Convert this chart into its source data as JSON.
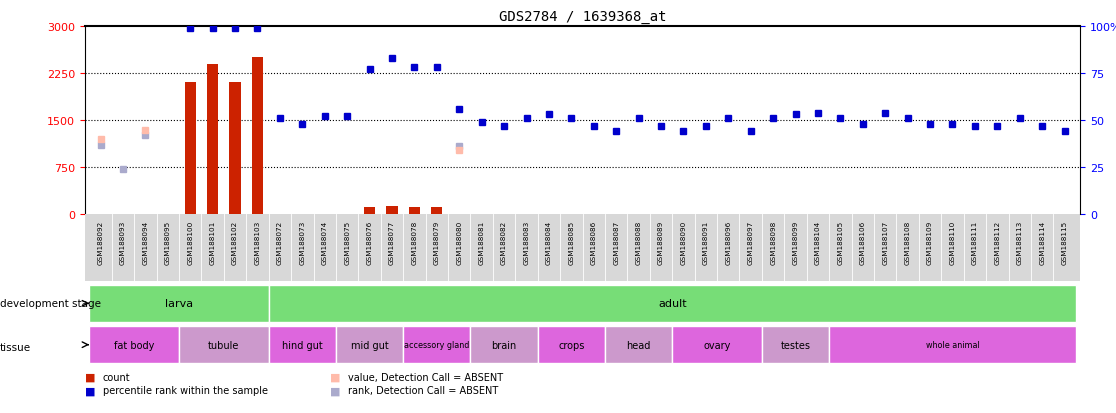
{
  "title": "GDS2784 / 1639368_at",
  "samples": [
    "GSM188092",
    "GSM188093",
    "GSM188094",
    "GSM188095",
    "GSM188100",
    "GSM188101",
    "GSM188102",
    "GSM188103",
    "GSM188072",
    "GSM188073",
    "GSM188074",
    "GSM188075",
    "GSM188076",
    "GSM188077",
    "GSM188078",
    "GSM188079",
    "GSM188080",
    "GSM188081",
    "GSM188082",
    "GSM188083",
    "GSM188084",
    "GSM188085",
    "GSM188086",
    "GSM188087",
    "GSM188088",
    "GSM188089",
    "GSM188090",
    "GSM188091",
    "GSM188096",
    "GSM188097",
    "GSM188098",
    "GSM188099",
    "GSM188104",
    "GSM188105",
    "GSM188106",
    "GSM188107",
    "GSM188108",
    "GSM188109",
    "GSM188110",
    "GSM188111",
    "GSM188112",
    "GSM188113",
    "GSM188114",
    "GSM188115"
  ],
  "count_values": [
    5,
    5,
    5,
    5,
    2100,
    2400,
    2100,
    2500,
    5,
    5,
    5,
    5,
    110,
    130,
    110,
    110,
    5,
    5,
    5,
    5,
    5,
    5,
    5,
    5,
    5,
    5,
    5,
    5,
    5,
    5,
    5,
    5,
    5,
    5,
    5,
    5,
    5,
    5,
    5,
    5,
    5,
    5,
    5,
    5
  ],
  "rank_values": [
    null,
    null,
    null,
    null,
    99,
    99,
    99,
    99,
    51,
    48,
    52,
    52,
    77,
    83,
    78,
    78,
    56,
    49,
    47,
    51,
    53,
    51,
    47,
    44,
    51,
    47,
    44,
    47,
    51,
    44,
    51,
    53,
    54,
    51,
    48,
    54,
    51,
    48,
    48,
    47,
    47,
    51,
    47,
    44
  ],
  "rank_absent": [
    true,
    true,
    true,
    true,
    false,
    false,
    false,
    false,
    false,
    false,
    false,
    false,
    false,
    false,
    false,
    false,
    false,
    false,
    false,
    false,
    false,
    false,
    false,
    false,
    false,
    false,
    false,
    false,
    false,
    false,
    false,
    false,
    false,
    false,
    false,
    false,
    false,
    false,
    false,
    false,
    false,
    false,
    false,
    false
  ],
  "value_absent_vals": [
    1200,
    null,
    1350,
    null,
    null,
    null,
    null,
    null,
    null,
    null,
    null,
    null,
    null,
    null,
    null,
    null,
    1020,
    null,
    null,
    null,
    null,
    null,
    null,
    null,
    null,
    null,
    null,
    null,
    null,
    null,
    null,
    null,
    null,
    null,
    null,
    null,
    null,
    null,
    null,
    null,
    null,
    null,
    null,
    null
  ],
  "rank_absent_vals": [
    37,
    24,
    42,
    null,
    null,
    null,
    null,
    null,
    null,
    null,
    null,
    null,
    null,
    null,
    null,
    null,
    36,
    null,
    null,
    null,
    null,
    null,
    null,
    null,
    null,
    null,
    null,
    null,
    null,
    null,
    null,
    null,
    null,
    null,
    null,
    null,
    null,
    null,
    null,
    null,
    null,
    null,
    null,
    null
  ],
  "dev_stage_groups": [
    {
      "label": "larva",
      "start": 0,
      "end": 7
    },
    {
      "label": "adult",
      "start": 8,
      "end": 43
    }
  ],
  "tissue_groups": [
    {
      "label": "fat body",
      "start": 0,
      "end": 3
    },
    {
      "label": "tubule",
      "start": 4,
      "end": 7
    },
    {
      "label": "hind gut",
      "start": 8,
      "end": 10
    },
    {
      "label": "mid gut",
      "start": 11,
      "end": 13
    },
    {
      "label": "accessory gland",
      "start": 14,
      "end": 16
    },
    {
      "label": "brain",
      "start": 17,
      "end": 19
    },
    {
      "label": "crops",
      "start": 20,
      "end": 22
    },
    {
      "label": "head",
      "start": 23,
      "end": 25
    },
    {
      "label": "ovary",
      "start": 26,
      "end": 29
    },
    {
      "label": "testes",
      "start": 30,
      "end": 32
    },
    {
      "label": "whole animal",
      "start": 33,
      "end": 43
    }
  ],
  "left_ylim": [
    0,
    3000
  ],
  "right_ylim": [
    0,
    100
  ],
  "left_yticks": [
    0,
    750,
    1500,
    2250,
    3000
  ],
  "right_yticks": [
    0,
    25,
    50,
    75,
    100
  ],
  "bar_color": "#cc2200",
  "rank_color": "#0000cc",
  "rank_absent_color": "#aaaacc",
  "value_absent_color": "#ffbbaa",
  "dev_color": "#77dd77",
  "tissue_color1": "#dd66dd",
  "tissue_color2": "#cc99cc",
  "xticklabel_bg": "#dddddd",
  "grid_dotted_levels": [
    750,
    1500,
    2250
  ]
}
